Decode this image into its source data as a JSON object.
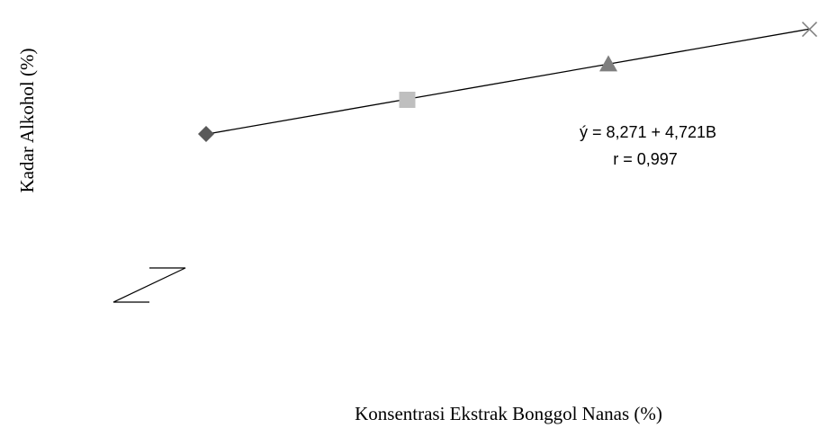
{
  "chart_data": {
    "type": "scatter",
    "title": "",
    "xlabel": "Konsentrasi Ekstrak Bonggol Nanas (%)",
    "ylabel": "Kadar Alkohol (%)",
    "series": [
      {
        "points": [
          {
            "x": 0,
            "y": 8.3,
            "marker": "diamond",
            "color": "#595959"
          },
          {
            "x": 1,
            "y": 12.9,
            "marker": "square",
            "color": "#bfbfbf"
          },
          {
            "x": 2,
            "y": 17.7,
            "marker": "triangle",
            "color": "#7f7f7f"
          },
          {
            "x": 3,
            "y": 22.4,
            "marker": "x",
            "color": "#7f7f7f"
          }
        ]
      }
    ],
    "trendline": {
      "type": "linear",
      "equation": "ý  = 8,271 + 4,721B",
      "r_label": "r = 0,997",
      "intercept": 8.271,
      "slope": 4.721,
      "color": "#000000"
    },
    "axis_break_symbol": true,
    "grid": false,
    "legend": "none"
  }
}
